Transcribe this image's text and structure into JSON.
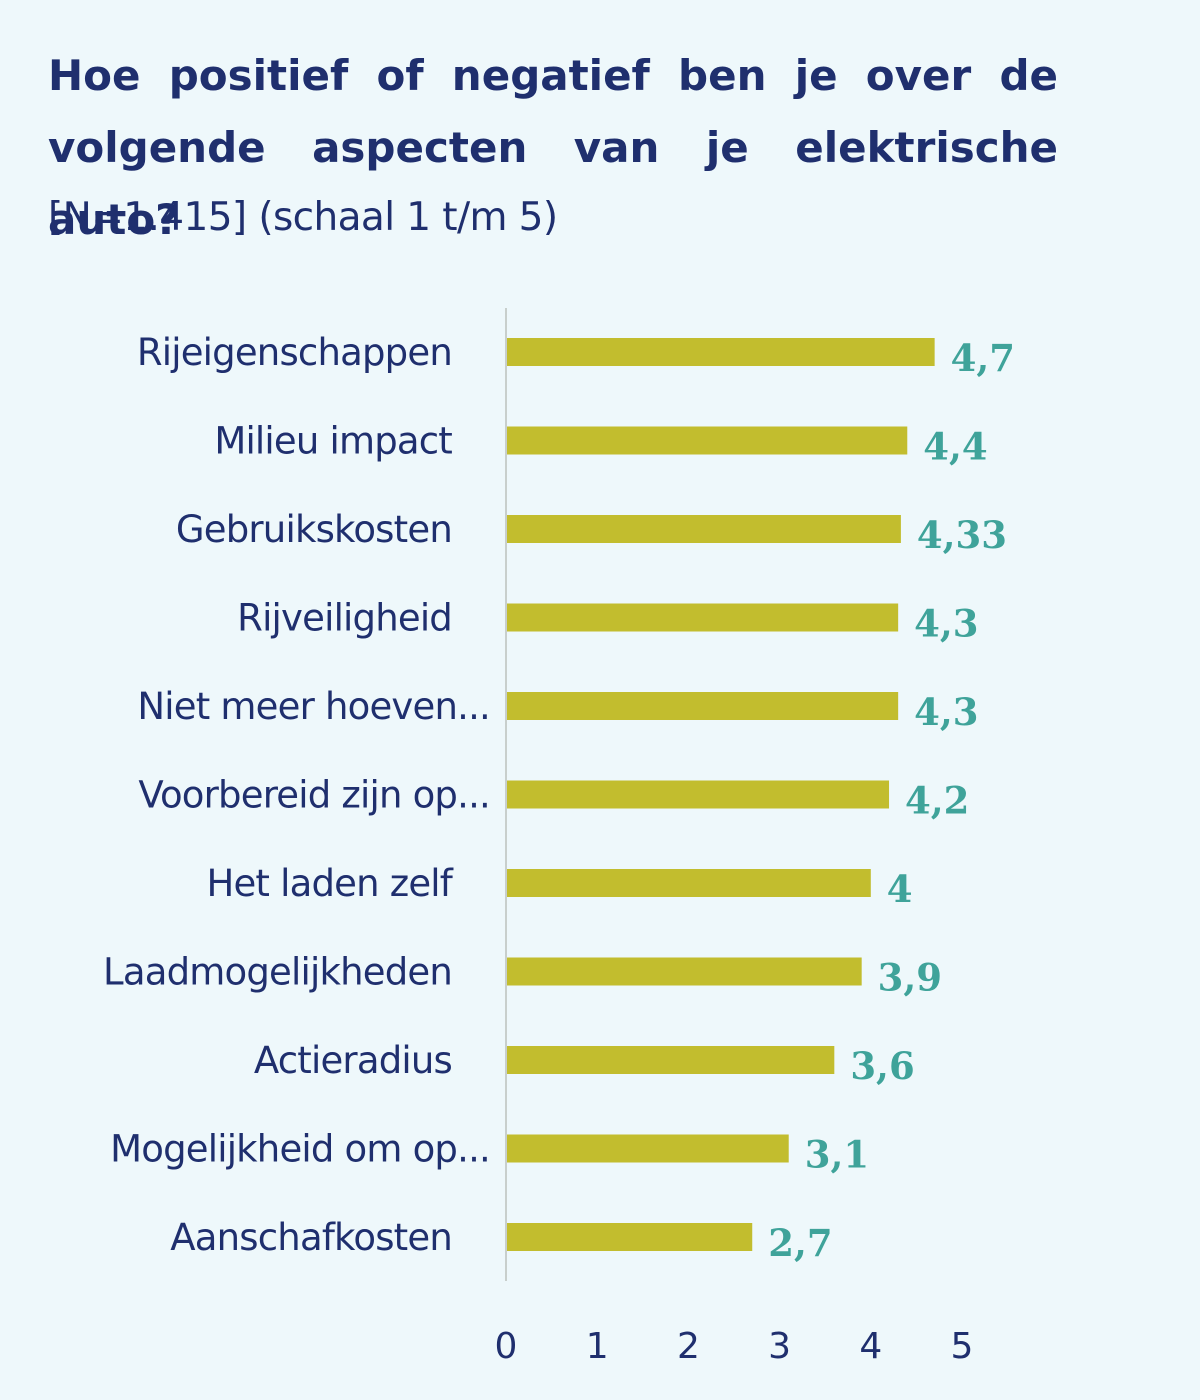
{
  "chart_data": {
    "type": "bar",
    "orientation": "horizontal",
    "title": "Hoe positief of negatief ben je over de volgende aspecten van je elektrische auto?",
    "subtitle": "[N=1.415] (schaal 1 t/m 5)",
    "categories": [
      "Rijeigenschappen",
      "Milieu impact",
      "Gebruikskosten",
      "Rijveiligheid",
      "Niet meer hoeven...",
      "Voorbereid zijn op...",
      "Het laden zelf",
      "Laadmogelijkheden",
      "Actieradius",
      "Mogelijkheid om op...",
      "Aanschafkosten"
    ],
    "values": [
      4.7,
      4.4,
      4.33,
      4.3,
      4.3,
      4.2,
      4.0,
      3.9,
      3.6,
      3.1,
      2.7
    ],
    "value_labels": [
      "4,7",
      "4,4",
      "4,33",
      "4,3",
      "4,3",
      "4,2",
      "4",
      "3,9",
      "3,6",
      "3,1",
      "2,7"
    ],
    "xlim": [
      0,
      5
    ],
    "x_ticks": [
      "0",
      "1",
      "2",
      "3",
      "4",
      "5"
    ],
    "xlabel": "",
    "ylabel": "",
    "grid": false,
    "legend": "none",
    "colors": {
      "bar": "#c2bd2e",
      "value_label": "#3fa39a",
      "text": "#1f2f6e",
      "axis": "#c8cfcc",
      "background": "#eef8fb"
    }
  }
}
